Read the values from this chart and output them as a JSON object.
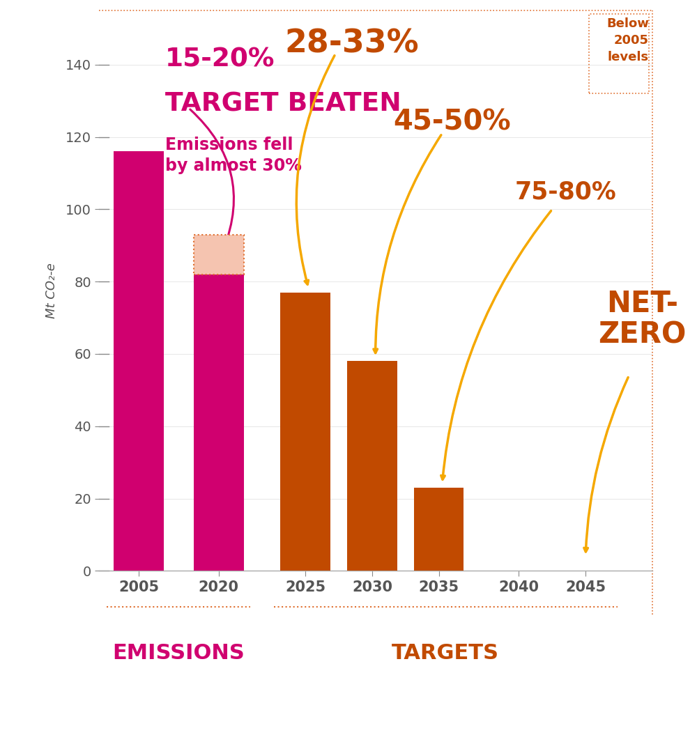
{
  "bars": [
    {
      "year": "2005",
      "value": 116,
      "color": "#D0006F",
      "type": "emission"
    },
    {
      "year": "2020",
      "value": 82,
      "target_top": 93,
      "target_bottom": 82,
      "color": "#D0006F",
      "type": "emission"
    },
    {
      "year": "2025",
      "value": 77,
      "color": "#C14A00",
      "type": "target"
    },
    {
      "year": "2030",
      "value": 58,
      "color": "#C14A00",
      "type": "target"
    },
    {
      "year": "2035",
      "value": 23,
      "color": "#C14A00",
      "type": "target"
    },
    {
      "year": "2040",
      "value": 0,
      "color": "#C14A00",
      "type": "target"
    },
    {
      "year": "2045",
      "value": 0,
      "color": "#C14A00",
      "type": "target"
    }
  ],
  "ylabel": "Mt CO₂-e",
  "yticks": [
    0,
    20,
    40,
    60,
    80,
    100,
    120,
    140
  ],
  "ylim": [
    0,
    155
  ],
  "title_beaten_line1": "15-20%",
  "title_beaten_line2": "TARGET BEATEN",
  "subtitle_beaten": "Emissions fell\nby almost 30%",
  "label_2025": "28-33%",
  "label_2030": "45-50%",
  "label_2035": "75-80%",
  "label_2045": "NET-\nZERO",
  "top_right_label": "Below\n2005\nlevels",
  "bottom_label_emissions": "EMISSIONS",
  "bottom_label_targets": "TARGETS",
  "color_crimson": "#D0006F",
  "color_orange": "#C14A00",
  "color_yellow": "#F5A800",
  "color_dotted_border": "#E07030",
  "color_target_fill": "#F5C4B0",
  "background": "#FFFFFF",
  "x_positions": {
    "2005": 0.5,
    "2020": 1.7,
    "2025": 3.0,
    "2030": 4.0,
    "2035": 5.0,
    "2040": 6.2,
    "2045": 7.2
  },
  "bar_width": 0.75,
  "xlim": [
    -0.1,
    8.2
  ]
}
